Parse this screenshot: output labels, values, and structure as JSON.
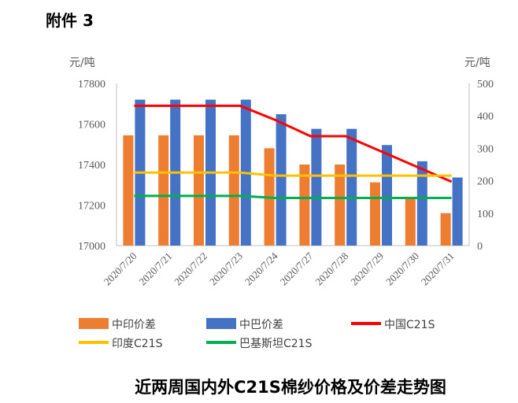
{
  "header": {
    "attachment": "附件 3"
  },
  "caption": "近两周国内外C21S棉纱价格及价差走势图",
  "chart_data": {
    "type": "bar",
    "title": "",
    "categories": [
      "2020/7/20",
      "2020/7/21",
      "2020/7/22",
      "2020/7/23",
      "2020/7/24",
      "2020/7/27",
      "2020/7/28",
      "2020/7/29",
      "2020/7/30",
      "2020/7/31"
    ],
    "left_axis": {
      "unit": "元/吨",
      "min": 17000,
      "max": 17800,
      "ticks": [
        17000,
        17200,
        17400,
        17600,
        17800
      ]
    },
    "right_axis": {
      "unit": "元/吨",
      "min": 0,
      "max": 500,
      "ticks": [
        0,
        100,
        200,
        300,
        400,
        500
      ]
    },
    "series": [
      {
        "name": "中印价差",
        "type": "bar",
        "axis": "right",
        "color": "#ED7D31",
        "values": [
          340,
          340,
          340,
          340,
          300,
          250,
          250,
          195,
          150,
          100
        ]
      },
      {
        "name": "中巴价差",
        "type": "bar",
        "axis": "right",
        "color": "#4472C4",
        "values": [
          450,
          450,
          450,
          450,
          405,
          360,
          360,
          310,
          260,
          210
        ]
      },
      {
        "name": "中国C21S",
        "type": "line",
        "axis": "left",
        "color": "#FF0000",
        "values": [
          17690,
          17690,
          17690,
          17690,
          17620,
          17540,
          17540,
          17465,
          17390,
          17315
        ]
      },
      {
        "name": "印度C21S",
        "type": "line",
        "axis": "left",
        "color": "#FFC000",
        "values": [
          17360,
          17360,
          17360,
          17360,
          17345,
          17345,
          17345,
          17345,
          17345,
          17345
        ]
      },
      {
        "name": "巴基斯坦C21S",
        "type": "line",
        "axis": "left",
        "color": "#00B050",
        "values": [
          17245,
          17245,
          17245,
          17245,
          17235,
          17235,
          17235,
          17235,
          17235,
          17235
        ]
      }
    ],
    "grid": false,
    "legend": "bottom"
  }
}
